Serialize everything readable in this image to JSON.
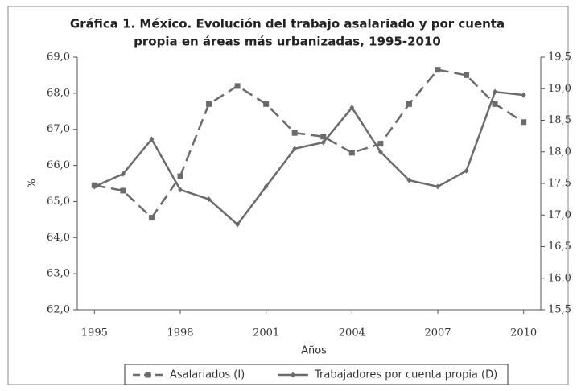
{
  "chart_data": {
    "type": "line",
    "title": "Gráfica 1. México. Evolución del trabajo asalariado y por cuenta",
    "subtitle": "propia en áreas más urbanizadas, 1995-2010",
    "y_label": "%",
    "x_label": "Años",
    "x": [
      1995,
      1996,
      1997,
      1998,
      1999,
      2000,
      2001,
      2002,
      2003,
      2004,
      2005,
      2006,
      2007,
      2008,
      2009,
      2010
    ],
    "xlim": [
      1994.4,
      2010.6
    ],
    "xticks": [
      1995,
      1998,
      2001,
      2004,
      2007,
      2010
    ],
    "ylim": [
      62,
      69
    ],
    "yticks": [
      {
        "value": 62,
        "label": "62,0"
      },
      {
        "value": 63,
        "label": "63,0"
      },
      {
        "value": 64,
        "label": "64,0"
      },
      {
        "value": 65,
        "label": "65,0"
      },
      {
        "value": 66,
        "label": "66,0"
      },
      {
        "value": 67,
        "label": "67,0"
      },
      {
        "value": 68,
        "label": "68,0"
      },
      {
        "value": 69,
        "label": "69,0"
      }
    ],
    "y2lim": [
      15.5,
      19.5
    ],
    "y2ticks": [
      {
        "value": 15.5,
        "label": "15,5"
      },
      {
        "value": 16,
        "label": "16,0"
      },
      {
        "value": 16.5,
        "label": "16,5"
      },
      {
        "value": 17,
        "label": "17,0"
      },
      {
        "value": 17.5,
        "label": "17,5"
      },
      {
        "value": 18,
        "label": "18,0"
      },
      {
        "value": 18.5,
        "label": "18,5"
      },
      {
        "value": 19,
        "label": "19,0"
      },
      {
        "value": 19.5,
        "label": "19,5"
      }
    ],
    "grid": false,
    "legend": "bottom",
    "series": [
      {
        "name": "Asalariados (I)",
        "color": "#6b6b6b",
        "dash": "dashed",
        "marker": "square",
        "axis": "y",
        "values": [
          65.45,
          65.3,
          64.55,
          65.7,
          67.7,
          68.2,
          67.7,
          66.9,
          66.8,
          66.35,
          66.6,
          67.7,
          68.65,
          68.5,
          67.7,
          67.2
        ]
      },
      {
        "name": "Trabajadores por cuenta propia (D)",
        "color": "#6b6b6b",
        "dash": "solid",
        "marker": "diamond",
        "axis": "y2",
        "values": [
          17.45,
          17.65,
          18.2,
          17.4,
          17.25,
          16.85,
          17.45,
          18.05,
          18.15,
          18.7,
          18.0,
          17.55,
          17.45,
          17.7,
          18.95,
          18.9
        ]
      }
    ]
  }
}
